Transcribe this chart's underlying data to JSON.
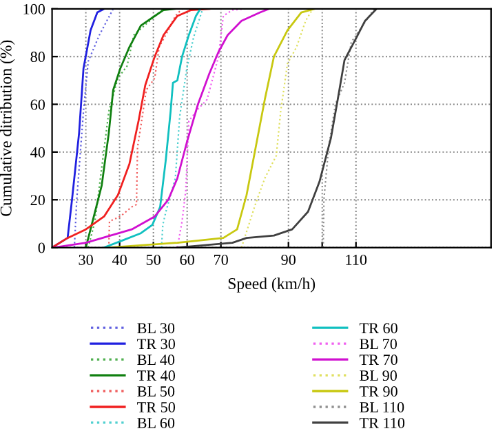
{
  "chart_data": {
    "type": "line",
    "xlabel": "Speed (km/h)",
    "ylabel": "Cumulative ditribution (%)",
    "xlim": [
      20,
      150
    ],
    "ylim": [
      0,
      100
    ],
    "xticks": [
      30,
      40,
      50,
      60,
      70,
      90,
      {
        "value": 100,
        "label": null
      },
      110
    ],
    "yticks": [
      0,
      20,
      40,
      60,
      80,
      100
    ],
    "grid": true,
    "legend": "bottom",
    "marker": "none",
    "series": [
      {
        "name": "BL 30",
        "color": "#6060e0",
        "line_style": "dotted",
        "x": [
          26.6,
          27.3,
          29.3,
          30.7,
          34,
          38.1
        ],
        "values": [
          0,
          20,
          57,
          78,
          89,
          100
        ]
      },
      {
        "name": "TR 30",
        "color": "#2020e0",
        "line_style": "solid",
        "x": [
          20,
          24.6,
          25.9,
          28,
          29.3,
          31.4,
          33.4,
          35.4
        ],
        "values": [
          0,
          4,
          20,
          48,
          75,
          91,
          98.5,
          100
        ]
      },
      {
        "name": "BL 40",
        "color": "#50b050",
        "line_style": "dotted",
        "x": [
          30.7,
          32.7,
          36.8,
          39.5,
          42.2,
          44.2,
          51.7,
          53
        ],
        "values": [
          0,
          11,
          57,
          71,
          76,
          89,
          98.5,
          100
        ]
      },
      {
        "name": "TR 40",
        "color": "#108010",
        "line_style": "solid",
        "x": [
          30,
          32,
          34.7,
          36.8,
          38.1,
          40.2,
          42.9,
          46.3,
          50.4,
          53,
          56.5
        ],
        "values": [
          0,
          11,
          26,
          48,
          66,
          75,
          84,
          93,
          97,
          99.5,
          100
        ]
      },
      {
        "name": "BL 50",
        "color": "#f06060",
        "line_style": "dotted",
        "x": [
          36.8,
          37,
          40.2,
          43.6,
          45,
          45.3,
          46.3,
          47.9,
          50.4,
          51.7,
          54.4,
          56.5,
          58.5
        ],
        "values": [
          0,
          11,
          13,
          17,
          18,
          42,
          51,
          66,
          71,
          84,
          91,
          97,
          100
        ]
      },
      {
        "name": "TR 50",
        "color": "#f02020",
        "line_style": "solid",
        "x": [
          20,
          24.6,
          30,
          35.4,
          39.5,
          42.9,
          45.6,
          47.6,
          50.4,
          53,
          57.1,
          61.2,
          66.6
        ],
        "values": [
          0,
          4,
          7.6,
          13,
          22,
          35,
          53,
          68,
          80,
          89,
          97,
          99.5,
          100
        ]
      },
      {
        "name": "BL 60",
        "color": "#50d0d0",
        "line_style": "dotted",
        "x": [
          52.4,
          52.8,
          53.7,
          56.5,
          57.8,
          59.9,
          61.9,
          64.6
        ],
        "values": [
          0,
          9.5,
          15,
          29,
          55,
          75,
          88,
          100
        ]
      },
      {
        "name": "TR 60",
        "color": "#10c0c0",
        "line_style": "solid",
        "x": [
          35.4,
          40.9,
          46.3,
          49.7,
          52,
          53.7,
          55.1,
          55.8,
          57.1,
          58.5,
          60.5,
          62.6,
          63.9
        ],
        "values": [
          0,
          3,
          6,
          9.5,
          17,
          37,
          57,
          69,
          70,
          80,
          89,
          97,
          100
        ]
      },
      {
        "name": "BL 70",
        "color": "#f060f0",
        "line_style": "dotted",
        "x": [
          57.1,
          58.5,
          59.6,
          60.5,
          63.2,
          65.9,
          69.3,
          70.7,
          73.4,
          77.5
        ],
        "values": [
          0,
          11,
          24,
          53,
          58,
          62,
          80,
          97,
          99.5,
          100
        ]
      },
      {
        "name": "TR 70",
        "color": "#d010d0",
        "line_style": "solid",
        "x": [
          20.5,
          30,
          43.6,
          50.4,
          54.4,
          57.1,
          59.9,
          63.2,
          66.6,
          69.3,
          72,
          76.1,
          81.6,
          84.3
        ],
        "values": [
          0,
          2,
          7.6,
          13,
          20,
          29,
          44,
          60,
          73,
          82,
          89,
          95,
          98.5,
          100
        ]
      },
      {
        "name": "BL 90",
        "color": "#e0e060",
        "line_style": "dotted",
        "x": [
          76.1,
          80.3,
          83,
          86.4,
          87.7,
          89.7,
          92.4,
          95.1,
          97.2
        ],
        "values": [
          0,
          18.5,
          29,
          38.5,
          57,
          77,
          84,
          95,
          100
        ]
      },
      {
        "name": "TR 90",
        "color": "#c8c810",
        "line_style": "solid",
        "x": [
          36.8,
          57.1,
          70.7,
          74.8,
          77.6,
          80.3,
          83,
          85.7,
          89.7,
          93.8,
          97.8
        ],
        "values": [
          0,
          2,
          4,
          7.6,
          22,
          42,
          62,
          80,
          91,
          98.5,
          100
        ]
      },
      {
        "name": "BL 110",
        "color": "#909090",
        "line_style": "dotted",
        "x": [
          100.3,
          100.5,
          101.9,
          103.9,
          106.6,
          108.6,
          112,
          115.4
        ],
        "values": [
          0,
          20,
          42,
          60,
          69,
          86,
          93,
          100
        ]
      },
      {
        "name": "TR 110",
        "color": "#404040",
        "line_style": "solid",
        "x": [
          57,
          73.4,
          77.6,
          85.7,
          91.1,
          95.8,
          99.2,
          102.6,
          104.6,
          106.6,
          110,
          112.7,
          116.1
        ],
        "values": [
          0,
          2,
          4,
          5,
          7.6,
          15,
          27.6,
          46,
          62,
          78.5,
          87.6,
          95,
          100
        ]
      }
    ]
  }
}
